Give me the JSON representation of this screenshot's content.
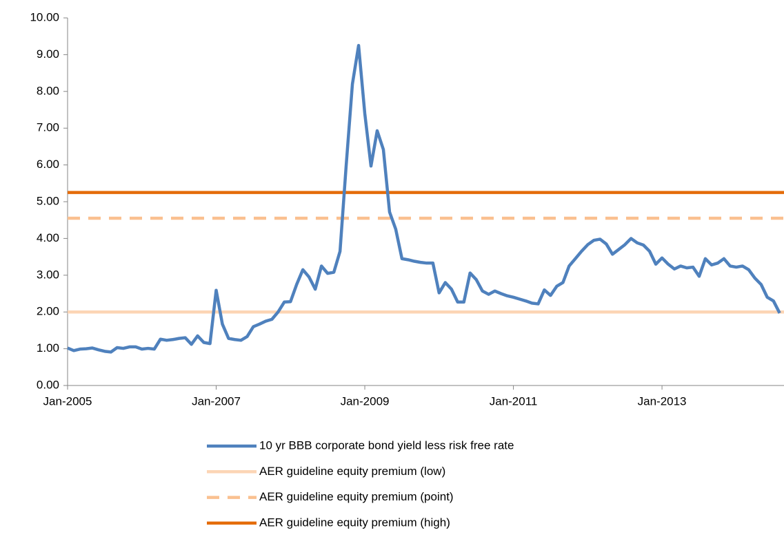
{
  "chart_data": {
    "type": "line",
    "categories": [
      "Jan-2005",
      null,
      null,
      null,
      null,
      null,
      null,
      null,
      null,
      null,
      null,
      null,
      null,
      null,
      null,
      null,
      null,
      null,
      null,
      null,
      null,
      null,
      null,
      null,
      "Jan-2007",
      null,
      null,
      null,
      null,
      null,
      null,
      null,
      null,
      null,
      null,
      null,
      null,
      null,
      null,
      null,
      null,
      null,
      null,
      null,
      null,
      null,
      null,
      null,
      "Jan-2009",
      null,
      null,
      null,
      null,
      null,
      null,
      null,
      null,
      null,
      null,
      null,
      null,
      null,
      null,
      null,
      null,
      null,
      null,
      null,
      null,
      null,
      null,
      null,
      "Jan-2011",
      null,
      null,
      null,
      null,
      null,
      null,
      null,
      null,
      null,
      null,
      null,
      null,
      null,
      null,
      null,
      null,
      null,
      null,
      null,
      null,
      null,
      null,
      null,
      "Jan-2013",
      null,
      null,
      null,
      null,
      null,
      null,
      null,
      null,
      null,
      null,
      null,
      null,
      null,
      null,
      null,
      null,
      null,
      null,
      null
    ],
    "series": [
      {
        "name": "10 yr BBB corporate bond yield less risk free rate",
        "color": "#4f81bd",
        "values": [
          1.02,
          0.95,
          0.99,
          1.0,
          1.02,
          0.97,
          0.93,
          0.91,
          1.03,
          1.01,
          1.05,
          1.05,
          0.99,
          1.01,
          0.99,
          1.26,
          1.23,
          1.25,
          1.28,
          1.3,
          1.12,
          1.35,
          1.17,
          1.14,
          2.59,
          1.67,
          1.28,
          1.25,
          1.23,
          1.33,
          1.6,
          1.67,
          1.75,
          1.8,
          2.0,
          2.27,
          2.28,
          2.75,
          3.15,
          2.95,
          2.62,
          3.25,
          3.05,
          3.08,
          3.65,
          6.0,
          8.2,
          9.25,
          7.4,
          5.97,
          6.93,
          6.42,
          4.72,
          4.25,
          3.45,
          3.42,
          3.38,
          3.35,
          3.33,
          3.33,
          2.52,
          2.8,
          2.62,
          2.27,
          2.27,
          3.06,
          2.88,
          2.57,
          2.48,
          2.57,
          2.5,
          2.44,
          2.4,
          2.35,
          2.3,
          2.24,
          2.22,
          2.6,
          2.45,
          2.7,
          2.8,
          3.25,
          3.45,
          3.65,
          3.83,
          3.95,
          3.98,
          3.85,
          3.57,
          3.7,
          3.83,
          4.0,
          3.88,
          3.82,
          3.65,
          3.3,
          3.47,
          3.3,
          3.17,
          3.25,
          3.2,
          3.22,
          2.97,
          3.45,
          3.28,
          3.33,
          3.45,
          3.25,
          3.22,
          3.25,
          3.15,
          2.92,
          2.75,
          2.4,
          2.3,
          1.97
        ]
      },
      {
        "name": "AER guideline equity premium (low)",
        "color": "#fcd5b5",
        "value": 2.0
      },
      {
        "name": "AER guideline equity premium (point)",
        "color": "#fac090",
        "value": 4.55,
        "dashed": true
      },
      {
        "name": "AER guideline equity premium (high)",
        "color": "#e46c0a",
        "value": 5.25
      }
    ],
    "ylim": [
      0,
      10
    ],
    "yticks": [
      {
        "value": 0,
        "label": "0.00"
      },
      {
        "value": 1,
        "label": "1.00"
      },
      {
        "value": 2,
        "label": "2.00"
      },
      {
        "value": 3,
        "label": "3.00"
      },
      {
        "value": 4,
        "label": "4.00"
      },
      {
        "value": 5,
        "label": "5.00"
      },
      {
        "value": 6,
        "label": "6.00"
      },
      {
        "value": 7,
        "label": "7.00"
      },
      {
        "value": 8,
        "label": "8.00"
      },
      {
        "value": 9,
        "label": "9.00"
      },
      {
        "value": 10,
        "label": "10.00"
      }
    ],
    "grid": false
  }
}
